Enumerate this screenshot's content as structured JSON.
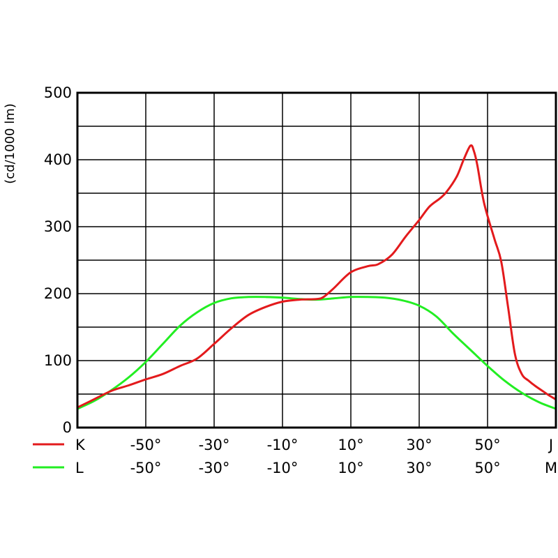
{
  "chart_data": {
    "type": "line",
    "ylabel": "(cd/1000 lm)",
    "xlim": [
      -70,
      70
    ],
    "ylim": [
      0,
      500
    ],
    "grid": true,
    "y_ticks": [
      "0",
      "100",
      "200",
      "300",
      "400",
      "500"
    ],
    "y_tick_values": [
      0,
      100,
      200,
      300,
      400,
      500
    ],
    "x_tick_values": [
      -50,
      -30,
      -10,
      10,
      30,
      50
    ],
    "x_tick_rows": [
      {
        "series": "K",
        "labels": [
          "-50°",
          "-30°",
          "-10°",
          "10°",
          "30°",
          "50°"
        ],
        "end_label": "J"
      },
      {
        "series": "L",
        "labels": [
          "-50°",
          "-30°",
          "-10°",
          "10°",
          "30°",
          "50°"
        ],
        "end_label": "M"
      }
    ],
    "legend": "bottom-left",
    "series": [
      {
        "name": "K",
        "color": "#e31a1c",
        "x": [
          -70,
          -66,
          -60,
          -55,
          -50,
          -45,
          -40,
          -35,
          -30,
          -25,
          -20,
          -15,
          -10,
          -5,
          0,
          2,
          5,
          10,
          15,
          18,
          22,
          26,
          30,
          33,
          36,
          38,
          41,
          43,
          45,
          46,
          47,
          49,
          52,
          54,
          56,
          58,
          60,
          62,
          64,
          66,
          68,
          70
        ],
        "y": [
          30,
          40,
          55,
          63,
          72,
          80,
          92,
          103,
          125,
          148,
          168,
          180,
          188,
          191,
          192,
          195,
          208,
          232,
          241,
          244,
          258,
          285,
          310,
          330,
          342,
          352,
          375,
          400,
          421,
          413,
          392,
          335,
          282,
          248,
          180,
          110,
          80,
          70,
          62,
          55,
          48,
          42
        ]
      },
      {
        "name": "L",
        "color": "#22ee22",
        "x": [
          -70,
          -65,
          -60,
          -55,
          -50,
          -45,
          -40,
          -35,
          -30,
          -25,
          -20,
          -15,
          -10,
          -5,
          0,
          5,
          10,
          15,
          20,
          25,
          30,
          35,
          40,
          45,
          50,
          55,
          60,
          65,
          70
        ],
        "y": [
          28,
          40,
          56,
          75,
          98,
          125,
          152,
          172,
          186,
          193,
          195,
          195,
          194,
          192,
          191,
          193,
          195,
          195,
          194,
          190,
          182,
          166,
          140,
          116,
          92,
          70,
          52,
          38,
          28
        ]
      }
    ]
  }
}
